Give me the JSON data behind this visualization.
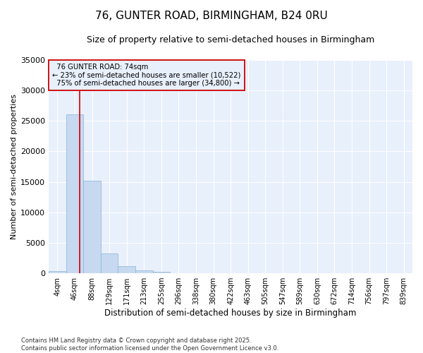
{
  "title": "76, GUNTER ROAD, BIRMINGHAM, B24 0RU",
  "subtitle": "Size of property relative to semi-detached houses in Birmingham",
  "xlabel": "Distribution of semi-detached houses by size in Birmingham",
  "ylabel": "Number of semi-detached properties",
  "property_label": "76 GUNTER ROAD: 74sqm",
  "pct_smaller": 23,
  "pct_larger": 75,
  "n_smaller": 10522,
  "n_larger": 34800,
  "categories": [
    "4sqm",
    "46sqm",
    "88sqm",
    "129sqm",
    "171sqm",
    "213sqm",
    "255sqm",
    "296sqm",
    "338sqm",
    "380sqm",
    "422sqm",
    "463sqm",
    "505sqm",
    "547sqm",
    "589sqm",
    "630sqm",
    "672sqm",
    "714sqm",
    "756sqm",
    "797sqm",
    "839sqm"
  ],
  "values": [
    350,
    26100,
    15200,
    3250,
    1150,
    450,
    200,
    30,
    0,
    0,
    0,
    0,
    0,
    0,
    0,
    0,
    0,
    0,
    0,
    0,
    0
  ],
  "bar_color": "#c6d9f0",
  "bar_edge_color": "#8ab4d8",
  "vline_color": "#cc0000",
  "vline_x": 1.3,
  "annotation_box_edge_color": "#cc0000",
  "ylim": [
    0,
    35000
  ],
  "yticks": [
    0,
    5000,
    10000,
    15000,
    20000,
    25000,
    30000,
    35000
  ],
  "plot_bg_color": "#e8f0fc",
  "fig_bg_color": "#ffffff",
  "grid_color": "#ffffff",
  "footnote": "Contains HM Land Registry data © Crown copyright and database right 2025.\nContains public sector information licensed under the Open Government Licence v3.0."
}
